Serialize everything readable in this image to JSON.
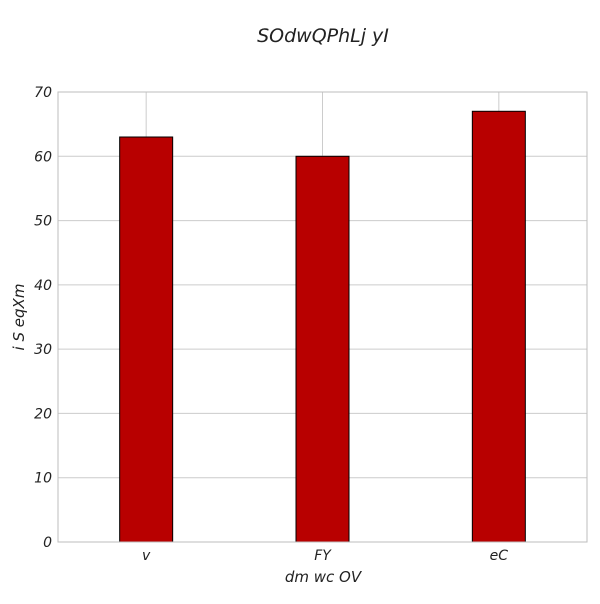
{
  "chart_data": {
    "type": "bar",
    "title": "SOdwQPhLj yI",
    "xlabel": "dm  wc OV",
    "ylabel": "i S eqXm",
    "categories": [
      "v",
      "FY",
      "eC"
    ],
    "values": [
      63,
      60,
      67
    ],
    "ylim": [
      0,
      70
    ],
    "yticks": [
      0,
      10,
      20,
      30,
      40,
      50,
      60,
      70
    ],
    "grid": true,
    "colors": {
      "bar_fill": "#b80000",
      "bar_edge": "#000000",
      "grid": "#cccccc",
      "frame": "#bdbdbd"
    }
  }
}
